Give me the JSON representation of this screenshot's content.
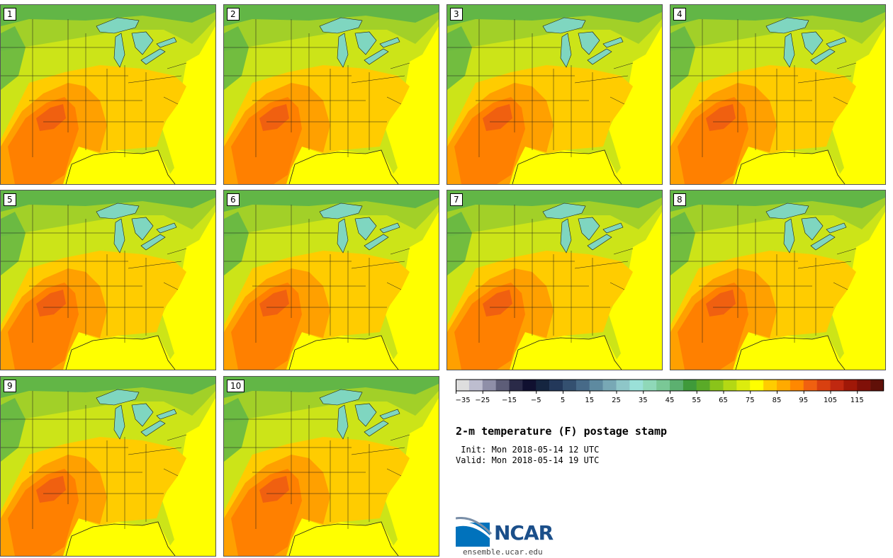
{
  "panels": [
    "1",
    "2",
    "3",
    "4",
    "5",
    "6",
    "7",
    "8",
    "9",
    "10"
  ],
  "title": "2-m temperature (F) postage stamp",
  "init_line": " Init: Mon 2018-05-14 12 UTC",
  "valid_line": "Valid: Mon 2018-05-14 19 UTC",
  "logo": {
    "name": "NCAR",
    "url": "ensemble.ucar.edu"
  },
  "colorbar": {
    "ticks": [
      "−35",
      "−25",
      "−15",
      "−5",
      "5",
      "15",
      "25",
      "35",
      "45",
      "55",
      "65",
      "75",
      "85",
      "95",
      "105",
      "115"
    ],
    "colors": [
      "#dedede",
      "#bdbdcf",
      "#8f8fa8",
      "#5d5d78",
      "#2a2a48",
      "#101030",
      "#152540",
      "#23385a",
      "#345070",
      "#476a88",
      "#5e8aa0",
      "#78a8b5",
      "#8ec6c8",
      "#9ae0d8",
      "#8fd8b8",
      "#7ac896",
      "#5cb070",
      "#3f9a3a",
      "#5aaa28",
      "#8ac41a",
      "#b4d814",
      "#dcec0e",
      "#ffff00",
      "#ffcc00",
      "#ffaa00",
      "#ff8800",
      "#f06010",
      "#d84010",
      "#c02810",
      "#a01808",
      "#801008",
      "#601008"
    ]
  },
  "colors": {
    "ocean": "#ffff00",
    "far_north": "#62b646",
    "north": "#a2d028",
    "mid": "#cce418",
    "warm": "#ffcc00",
    "hot": "#ffa000",
    "hotter": "#ff8000",
    "hottest": "#f06010",
    "lakes": "#7fd6c0",
    "lines": "#1a1a1a"
  }
}
